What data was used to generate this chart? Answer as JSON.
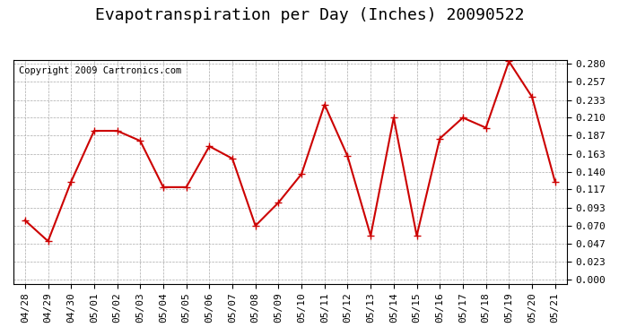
{
  "title": "Evapotranspiration per Day (Inches) 20090522",
  "copyright": "Copyright 2009 Cartronics.com",
  "x_labels": [
    "04/28",
    "04/29",
    "04/30",
    "05/01",
    "05/02",
    "05/03",
    "05/04",
    "05/05",
    "05/06",
    "05/07",
    "05/08",
    "05/09",
    "05/10",
    "05/11",
    "05/12",
    "05/13",
    "05/14",
    "05/15",
    "05/16",
    "05/17",
    "05/18",
    "05/19",
    "05/20",
    "05/21"
  ],
  "y_values": [
    0.077,
    0.05,
    0.127,
    0.193,
    0.193,
    0.18,
    0.12,
    0.12,
    0.173,
    0.157,
    0.07,
    0.1,
    0.137,
    0.227,
    0.16,
    0.057,
    0.21,
    0.057,
    0.183,
    0.21,
    0.197,
    0.283,
    0.237,
    0.127
  ],
  "line_color": "#cc0000",
  "marker": "+",
  "marker_size": 6,
  "marker_color": "#cc0000",
  "background_color": "#ffffff",
  "plot_bg_color": "#ffffff",
  "grid_color": "#aaaaaa",
  "y_min": 0.0,
  "y_max": 0.28,
  "y_ticks": [
    0.0,
    0.023,
    0.047,
    0.07,
    0.093,
    0.117,
    0.14,
    0.163,
    0.187,
    0.21,
    0.233,
    0.257,
    0.28
  ],
  "title_fontsize": 13,
  "copyright_fontsize": 7.5,
  "tick_fontsize": 8,
  "line_width": 1.5
}
